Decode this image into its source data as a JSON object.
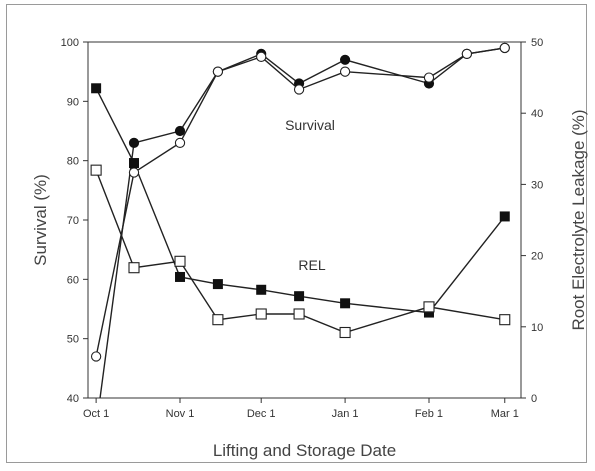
{
  "chart_data": {
    "type": "line",
    "xlabel": "Lifting and Storage Date",
    "ylabel": "Survival (%)",
    "ylabel_right": "Root Electrolyte Leakage (%)",
    "x_ticks": [
      "Oct 1",
      "Nov 1",
      "Dec 1",
      "Jan 1",
      "Feb 1",
      "Mar 1"
    ],
    "y_left_ticks": [
      "40",
      "50",
      "60",
      "70",
      "80",
      "90",
      "100"
    ],
    "y_right_ticks": [
      "0",
      "10",
      "20",
      "30",
      "40",
      "50"
    ],
    "ylim_left": [
      40,
      100
    ],
    "ylim_right": [
      0,
      50
    ],
    "annotations": [
      "Survival",
      "REL"
    ],
    "series": [
      {
        "axis": "left",
        "marker": "filled-circle",
        "x": [
          "Oct 1",
          "Oct 15",
          "Nov 1",
          "Nov 15",
          "Dec 1",
          "Dec 15",
          "Jan 1",
          "Feb 1",
          "Feb 15",
          "Mar 1"
        ],
        "values": [
          35,
          83,
          85,
          95,
          98,
          93,
          97,
          93,
          98,
          99
        ]
      },
      {
        "axis": "left",
        "marker": "open-circle",
        "x": [
          "Oct 1",
          "Oct 15",
          "Nov 1",
          "Nov 15",
          "Dec 1",
          "Dec 15",
          "Jan 1",
          "Feb 1",
          "Feb 15",
          "Mar 1"
        ],
        "values": [
          47,
          78,
          83,
          95,
          97.5,
          92,
          95,
          94,
          98,
          99
        ]
      },
      {
        "axis": "right",
        "marker": "filled-square",
        "x": [
          "Oct 1",
          "Oct 15",
          "Nov 1",
          "Nov 15",
          "Dec 1",
          "Dec 15",
          "Jan 1",
          "Feb 1",
          "Mar 1"
        ],
        "values": [
          43.5,
          33,
          17,
          16,
          15.2,
          14.3,
          13.3,
          12,
          25.5
        ]
      },
      {
        "axis": "right",
        "marker": "open-square",
        "x": [
          "Oct 1",
          "Oct 15",
          "Nov 1",
          "Nov 15",
          "Dec 1",
          "Dec 15",
          "Jan 1",
          "Feb 1",
          "Mar 1"
        ],
        "values": [
          32,
          18.3,
          19.2,
          11,
          11.8,
          11.8,
          9.2,
          12.8,
          11
        ]
      }
    ],
    "x_numeric_days": {
      "Oct 1": 0,
      "Oct 15": 14,
      "Nov 1": 31,
      "Nov 15": 45,
      "Dec 1": 61,
      "Dec 15": 75,
      "Jan 1": 92,
      "Feb 1": 123,
      "Feb 15": 137,
      "Mar 1": 151
    }
  }
}
